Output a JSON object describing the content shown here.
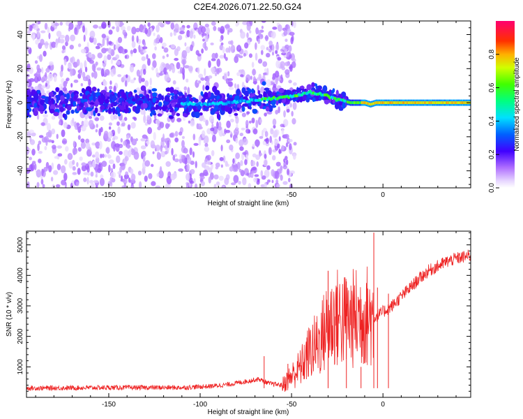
{
  "figure": {
    "title": "C2E4.2026.071.22.50.G24"
  },
  "chart_data": [
    {
      "type": "heatmap",
      "xlabel": "Height of straight line (km)",
      "ylabel": "Frequency (Hz)",
      "xlim": [
        -195,
        48
      ],
      "ylim": [
        -50,
        48
      ],
      "xticks": [
        -150,
        -100,
        -50,
        0
      ],
      "yticks": [
        -40,
        -20,
        0,
        20,
        40
      ],
      "ridge": [
        [
          -195,
          0
        ],
        [
          -120,
          0
        ],
        [
          -95,
          -1
        ],
        [
          -85,
          0
        ],
        [
          -75,
          1
        ],
        [
          -65,
          2
        ],
        [
          -55,
          3
        ],
        [
          -48,
          4
        ],
        [
          -40,
          6
        ],
        [
          -33,
          5
        ],
        [
          -26,
          2
        ],
        [
          -18,
          0
        ],
        [
          -10,
          0
        ],
        [
          -7,
          -1
        ],
        [
          -4,
          0
        ],
        [
          10,
          0
        ],
        [
          48,
          0
        ]
      ],
      "colorbar": {
        "label": "Normalized spectral amplitude",
        "range": [
          0,
          1
        ],
        "ticks": [
          0.0,
          0.2,
          0.4,
          0.6,
          0.8
        ],
        "tick_labels": [
          "0.0",
          "0.2",
          "0.4",
          "0.6",
          "0.8"
        ]
      }
    },
    {
      "type": "line",
      "xlabel": "Height of straight line (km)",
      "ylabel": "SNR (10 * v/v)",
      "xlim": [
        -195,
        48
      ],
      "ylim": [
        0,
        5450
      ],
      "xticks": [
        -150,
        -100,
        -50,
        0
      ],
      "yticks": [
        1000,
        2000,
        3000,
        4000,
        5000
      ],
      "series": [
        {
          "color": "#ee2222",
          "envelope": [
            [
              -195,
              300
            ],
            [
              -150,
              320
            ],
            [
              -110,
              320
            ],
            [
              -95,
              360
            ],
            [
              -85,
              420
            ],
            [
              -75,
              520
            ],
            [
              -68,
              600
            ],
            [
              -62,
              450
            ],
            [
              -55,
              400
            ],
            [
              -50,
              700
            ],
            [
              -45,
              1000
            ],
            [
              -40,
              1500
            ],
            [
              -35,
              1800
            ],
            [
              -30,
              2400
            ],
            [
              -25,
              2600
            ],
            [
              -20,
              2500
            ],
            [
              -15,
              2600
            ],
            [
              -10,
              2700
            ],
            [
              -5,
              2600
            ],
            [
              0,
              2800
            ],
            [
              5,
              3000
            ],
            [
              10,
              3300
            ],
            [
              15,
              3600
            ],
            [
              20,
              3900
            ],
            [
              25,
              4150
            ],
            [
              30,
              4300
            ],
            [
              35,
              4450
            ],
            [
              40,
              4550
            ],
            [
              48,
              4650
            ]
          ],
          "spikes": [
            [
              -65,
              1350
            ],
            [
              -52,
              1100
            ],
            [
              -30,
              4150
            ],
            [
              -20,
              3800
            ],
            [
              -5,
              5400
            ],
            [
              -3,
              3600
            ],
            [
              3,
              3400
            ],
            [
              -12,
              1000
            ]
          ]
        }
      ]
    }
  ]
}
